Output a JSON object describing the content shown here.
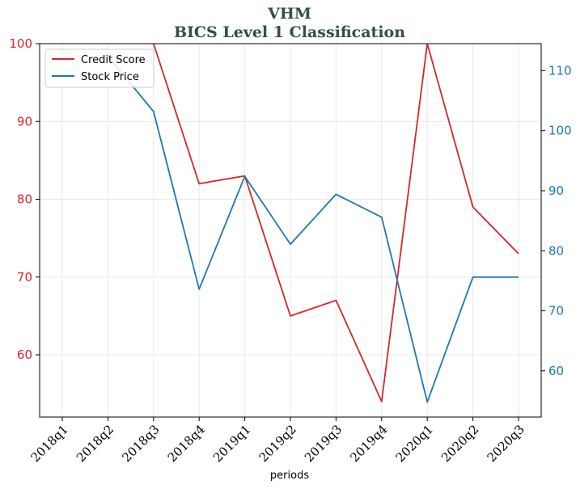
{
  "chart_data": {
    "type": "line",
    "title": "VHM",
    "subtitle": "BICS Level 1 Classification",
    "xlabel": "periods",
    "categories": [
      "2018q1",
      "2018q2",
      "2018q3",
      "2018q4",
      "2019q1",
      "2019q2",
      "2019q3",
      "2019q4",
      "2020q1",
      "2020q2",
      "2020q3"
    ],
    "series": [
      {
        "name": "Credit Score",
        "axis": "left",
        "color": "#d62728",
        "values": [
          null,
          null,
          100,
          82,
          83,
          65,
          67,
          54,
          100,
          79,
          73
        ]
      },
      {
        "name": "Stock Price",
        "axis": "right",
        "color": "#1f77b4",
        "values": [
          null,
          112.4,
          103.2,
          73.6,
          92.4,
          81.1,
          89.4,
          85.6,
          54.8,
          75.6,
          75.6
        ]
      }
    ],
    "y_left": {
      "ylim": [
        52,
        100
      ],
      "ticks": [
        60,
        70,
        80,
        90,
        100
      ],
      "color": "#d62728"
    },
    "y_right": {
      "ylim": [
        52.3,
        114.5
      ],
      "ticks": [
        60,
        70,
        80,
        90,
        100,
        110
      ],
      "color": "#1f77b4"
    },
    "grid": true,
    "legend_position": "top-left"
  }
}
